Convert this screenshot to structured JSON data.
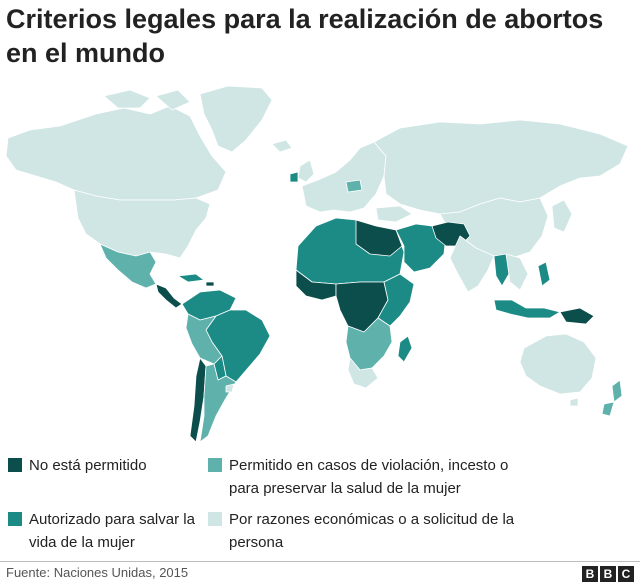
{
  "title": "Criterios legales para la realización de abortos en el mundo",
  "legend": [
    {
      "id": "not_permitted",
      "label": "No está permitido",
      "color": "#0b4e4c"
    },
    {
      "id": "save_life",
      "label": "Autorizado para salvar la vida de la mujer",
      "color": "#1c8b86"
    },
    {
      "id": "rape_health",
      "label": "Permitido en casos de violación, incesto o para preservar la salud de la mujer",
      "color": "#5fb1ac"
    },
    {
      "id": "on_request",
      "label": "Por razones económicas o a solicitud de la persona",
      "color": "#cfe6e4"
    }
  ],
  "source": "Fuente: Naciones Unidas, 2015",
  "logo": [
    "B",
    "B",
    "C"
  ]
}
